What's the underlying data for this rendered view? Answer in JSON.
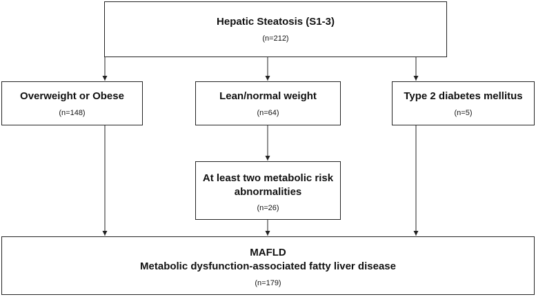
{
  "diagram": {
    "top": {
      "title": "Hepatic Steatosis (S1-3)",
      "count": "(n=212)"
    },
    "branches": [
      {
        "title": "Overweight or Obese",
        "count": "(n=148)"
      },
      {
        "title": "Lean/normal weight",
        "count": "(n=64)"
      },
      {
        "title": "Type 2 diabetes mellitus",
        "count": "(n=5)"
      }
    ],
    "middle": {
      "title_line1": "At least two metabolic risk",
      "title_line2": "abnormalities",
      "count": "(n=26)"
    },
    "bottom": {
      "title_line1": "MAFLD",
      "title_line2": "Metabolic dysfunction-associated fatty liver disease",
      "count": "(n=179)"
    }
  }
}
